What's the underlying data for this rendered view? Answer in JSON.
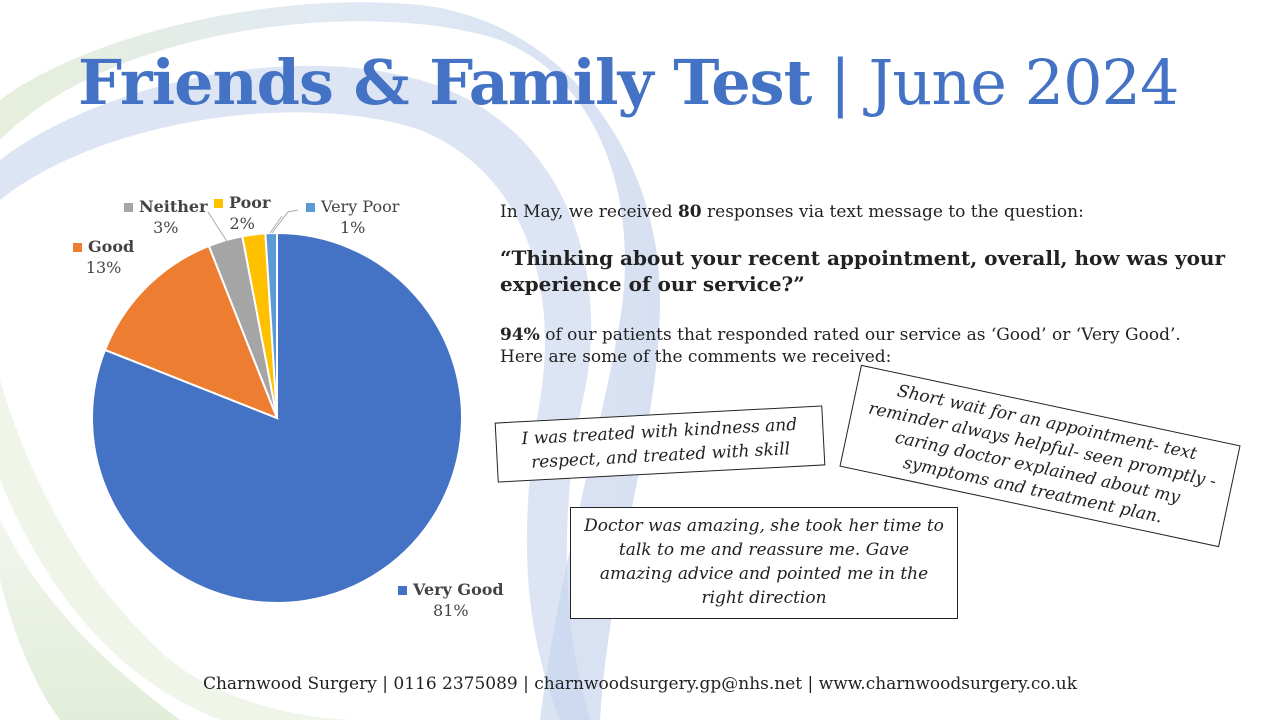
{
  "header": {
    "title_bold": "Friends & Family Test",
    "separator": "|",
    "title_light": "June 2024"
  },
  "chart_data": {
    "type": "pie",
    "title": "",
    "categories": [
      "Very Good",
      "Good",
      "Neither",
      "Poor",
      "Very Poor"
    ],
    "values": [
      81,
      13,
      3,
      2,
      1
    ],
    "labels": [
      "81%",
      "13%",
      "3%",
      "2%",
      "1%"
    ],
    "colors": [
      "#4472C4",
      "#ED7D31",
      "#A5A5A5",
      "#FFC000",
      "#5B9BD5"
    ],
    "legend_position": "data-labels"
  },
  "labels": {
    "very_good": {
      "name": "Very Good",
      "pct": "81%"
    },
    "good": {
      "name": "Good",
      "pct": "13%"
    },
    "neither": {
      "name": "Neither",
      "pct": "3%"
    },
    "poor": {
      "name": "Poor",
      "pct": "2%"
    },
    "very_poor": {
      "name": "Very Poor",
      "pct": "1%"
    }
  },
  "intro": {
    "prefix": "In May, we received ",
    "count": "80",
    "suffix": " responses via text message  to the question:"
  },
  "question": "“Thinking about your recent appointment, overall, how was your experience of our service?”",
  "result": {
    "pct": "94%",
    "line1": " of our patients that responded rated our service as ‘Good’ or ‘Very Good’.",
    "line2": "Here are some of the comments  we received:"
  },
  "comments": [
    "I was treated with kindness and respect, and treated with skill",
    "Short wait for an appointment- text reminder always helpful- seen promptly - caring doctor explained about my symptoms and treatment plan.",
    "Doctor was amazing, she took her time to talk to me and reassure me. Gave amazing advice and pointed me in the right direction"
  ],
  "footer": "Charnwood Surgery  |  0116 2375089  |  charnwoodsurgery.gp@nhs.net  |  www.charnwoodsurgery.co.uk"
}
